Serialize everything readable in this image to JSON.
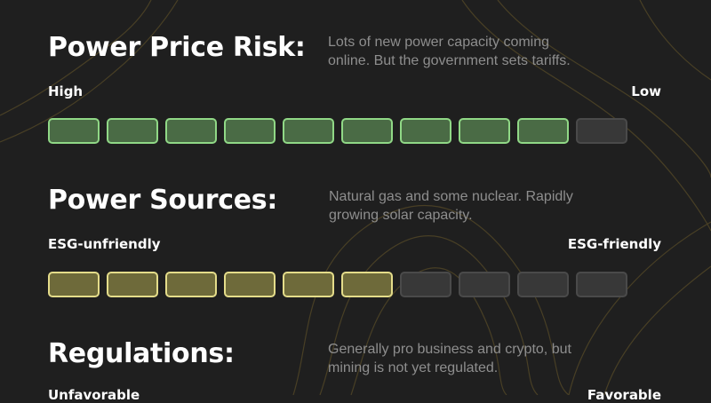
{
  "colors": {
    "background": "#1f1f1f",
    "green_active": "#90d886",
    "yellow_active": "#e4dc8a",
    "inactive": "#4a4a4a"
  },
  "sections": [
    {
      "title": "Power Price Risk:",
      "description": "Lots of new power capacity coming online. But the government sets tariffs.",
      "left_label": "High",
      "right_label": "Low",
      "scale": {
        "filled": 9,
        "total": 10,
        "color": "green"
      }
    },
    {
      "title": "Power Sources:",
      "description": "Natural gas and some nuclear. Rapidly growing solar capacity.",
      "left_label": "ESG-unfriendly",
      "right_label": "ESG-friendly",
      "scale": {
        "filled": 6,
        "total": 10,
        "color": "yellow"
      }
    },
    {
      "title": "Regulations:",
      "description": "Generally pro business and crypto, but mining is not yet regulated.",
      "left_label": "Unfavorable",
      "right_label": "Favorable"
    }
  ]
}
